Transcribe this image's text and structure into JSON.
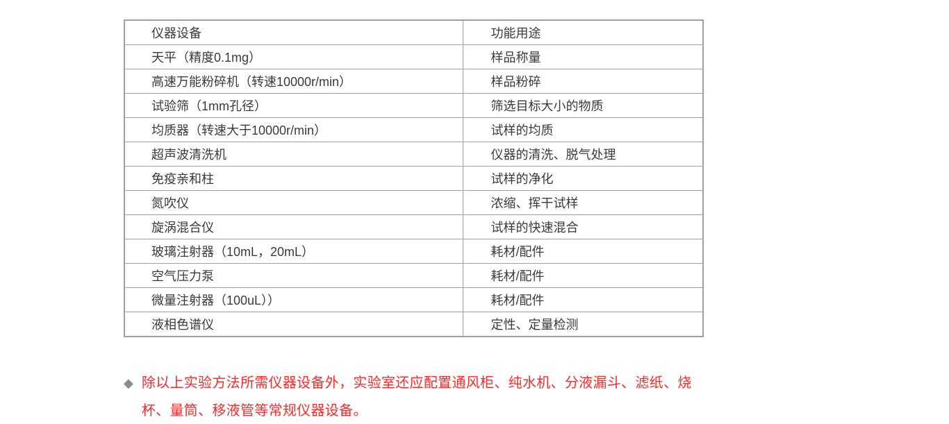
{
  "table": {
    "headers": [
      "仪器设备",
      "功能用途"
    ],
    "rows": [
      [
        "天平（精度0.1mg）",
        "样品称量"
      ],
      [
        "高速万能粉碎机（转速10000r/min）",
        "样品粉碎"
      ],
      [
        "试验筛（1mm孔径）",
        "筛选目标大小的物质"
      ],
      [
        "均质器（转速大于10000r/min）",
        "试样的均质"
      ],
      [
        "超声波清洗机",
        "仪器的清洗、脱气处理"
      ],
      [
        "免疫亲和柱",
        "试样的净化"
      ],
      [
        "氮吹仪",
        "浓缩、挥干试样"
      ],
      [
        "旋涡混合仪",
        "试样的快速混合"
      ],
      [
        "玻璃注射器（10mL，20mL）",
        "耗材/配件"
      ],
      [
        "空气压力泵",
        "耗材/配件"
      ],
      [
        "微量注射器（100uL））",
        "耗材/配件"
      ],
      [
        "液相色谱仪",
        "定性、定量检测"
      ]
    ]
  },
  "note": {
    "bullet": "◆",
    "text": "除以上实验方法所需仪器设备外，实验室还应配置通风柜、纯水机、分液漏斗、滤纸、烧杯、量筒、移液管等常规仪器设备。"
  },
  "colors": {
    "border": "#a0a0a0",
    "text": "#3a3a3a",
    "note_red": "#fa2a2a",
    "bullet_gray": "#8c8c8c"
  }
}
